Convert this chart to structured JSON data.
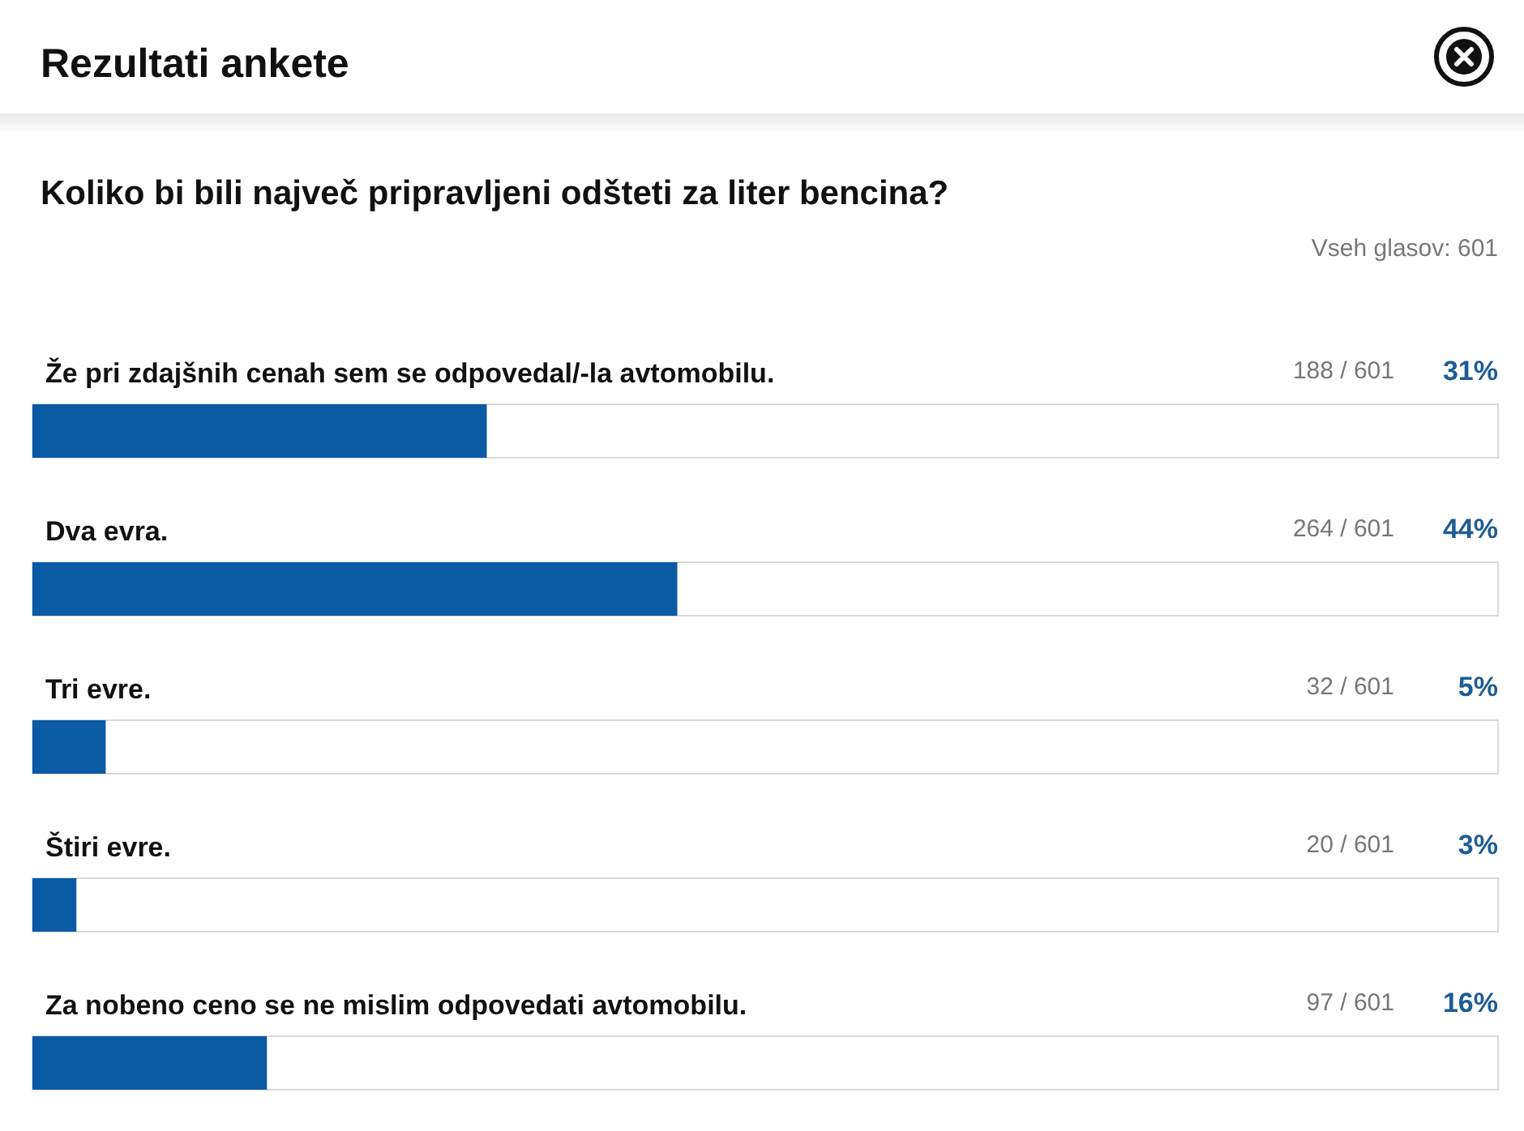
{
  "chart_data": {
    "type": "bar",
    "orientation": "horizontal",
    "title": "Rezultati ankete",
    "subtitle": "Koliko bi bili največ pripravljeni odšteti za liter bencina?",
    "categories": [
      "Že pri zdajšnih cenah sem se odpovedal/-la avtomobilu.",
      "Dva evra.",
      "Tri evre.",
      "Štiri evre.",
      "Za nobeno ceno se ne mislim odpovedati avtomobilu."
    ],
    "values": [
      31,
      44,
      5,
      3,
      16
    ],
    "color": "#0b5aa4",
    "value_labels": [
      "31%",
      "44%",
      "5%",
      "3%",
      "16%"
    ],
    "xlim": [
      0,
      100
    ],
    "tick_labels": "y",
    "annotations": [
      "Vseh glasov: 601",
      "188 / 601",
      "264 / 601",
      "32 / 601",
      "20 / 601",
      "97 / 601"
    ]
  }
}
